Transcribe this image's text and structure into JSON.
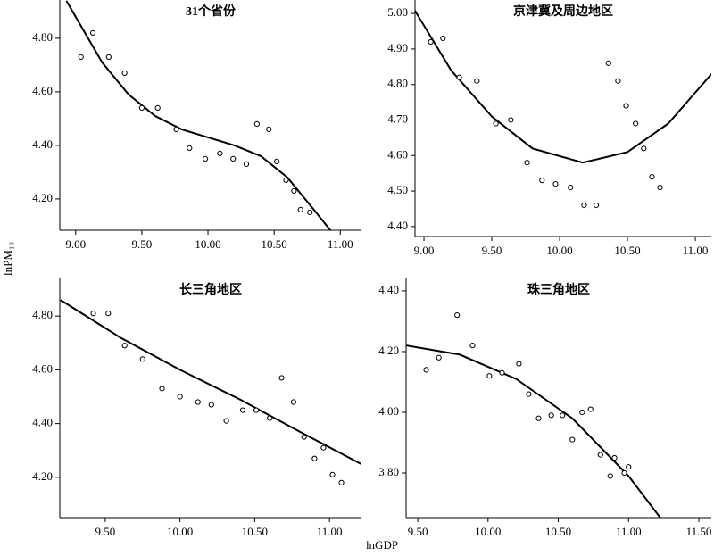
{
  "x_label": "lnGDP",
  "y_label": "lnPM₁₀",
  "chart_data": [
    {
      "type": "scatter",
      "title": "31个省份",
      "x": [
        9.04,
        9.13,
        9.25,
        9.37,
        9.5,
        9.62,
        9.76,
        9.86,
        9.98,
        10.09,
        10.19,
        10.29,
        10.37,
        10.46,
        10.52,
        10.59,
        10.65,
        10.7,
        10.77
      ],
      "values": [
        4.73,
        4.82,
        4.73,
        4.67,
        4.54,
        4.54,
        4.46,
        4.39,
        4.35,
        4.37,
        4.35,
        4.33,
        4.48,
        4.46,
        4.34,
        4.27,
        4.23,
        4.16,
        4.15
      ],
      "fit": {
        "x": [
          8.93,
          9.0,
          9.2,
          9.4,
          9.6,
          9.8,
          10.0,
          10.2,
          10.4,
          10.6,
          10.8,
          10.93
        ],
        "values": [
          4.94,
          4.88,
          4.71,
          4.59,
          4.51,
          4.46,
          4.43,
          4.4,
          4.36,
          4.28,
          4.16,
          4.08
        ]
      },
      "xlim": [
        8.88,
        11.16
      ],
      "ylim": [
        4.083,
        4.943
      ],
      "xticks": [
        {
          "value": 9,
          "label": "9.00"
        },
        {
          "value": 9.5,
          "label": "9.50"
        },
        {
          "value": 10,
          "label": "10.00"
        },
        {
          "value": 10.5,
          "label": "10.50"
        },
        {
          "value": 11,
          "label": "11.00"
        }
      ],
      "yticks": [
        {
          "value": 4.2,
          "label": "4.20"
        },
        {
          "value": 4.4,
          "label": "4.40"
        },
        {
          "value": 4.6,
          "label": "4.60"
        },
        {
          "value": 4.8,
          "label": "4.80"
        }
      ]
    },
    {
      "type": "scatter",
      "title": "京津冀及周边地区",
      "x": [
        9.05,
        9.14,
        9.26,
        9.39,
        9.53,
        9.64,
        9.76,
        9.87,
        9.97,
        10.08,
        10.18,
        10.27,
        10.36,
        10.43,
        10.49,
        10.56,
        10.62,
        10.68,
        10.74
      ],
      "values": [
        4.92,
        4.93,
        4.82,
        4.81,
        4.69,
        4.7,
        4.58,
        4.53,
        4.52,
        4.51,
        4.46,
        4.46,
        4.86,
        4.81,
        4.74,
        4.69,
        4.62,
        4.54,
        4.51
      ],
      "fit": {
        "x": [
          8.93,
          9.2,
          9.5,
          9.8,
          10.17,
          10.5,
          10.8,
          11.12
        ],
        "values": [
          5.01,
          4.84,
          4.71,
          4.62,
          4.58,
          4.61,
          4.69,
          4.83
        ]
      },
      "xlim": [
        8.934,
        11.118
      ],
      "ylim": [
        4.372,
        5.038
      ],
      "xticks": [
        {
          "value": 9,
          "label": "9.00"
        },
        {
          "value": 9.5,
          "label": "9.50"
        },
        {
          "value": 10,
          "label": "10.00"
        },
        {
          "value": 10.5,
          "label": "10.50"
        },
        {
          "value": 11,
          "label": "11.00"
        }
      ],
      "yticks": [
        {
          "value": 4.4,
          "label": "4.40"
        },
        {
          "value": 4.5,
          "label": "4.50"
        },
        {
          "value": 4.6,
          "label": "4.60"
        },
        {
          "value": 4.7,
          "label": "4.70"
        },
        {
          "value": 4.8,
          "label": "4.80"
        },
        {
          "value": 4.9,
          "label": "4.90"
        },
        {
          "value": 5,
          "label": "5.00"
        }
      ]
    },
    {
      "type": "scatter",
      "title": "长三角地区",
      "x": [
        9.42,
        9.52,
        9.63,
        9.75,
        9.88,
        10.0,
        10.12,
        10.21,
        10.31,
        10.42,
        10.51,
        10.6,
        10.68,
        10.76,
        10.83,
        10.9,
        10.96,
        11.02,
        11.08
      ],
      "values": [
        4.81,
        4.81,
        4.69,
        4.64,
        4.53,
        4.5,
        4.48,
        4.47,
        4.41,
        4.45,
        4.45,
        4.42,
        4.57,
        4.48,
        4.35,
        4.27,
        4.31,
        4.21,
        4.18
      ],
      "fit": {
        "x": [
          9.2,
          9.6,
          10.0,
          10.4,
          10.8,
          11.21
        ],
        "values": [
          4.86,
          4.72,
          4.6,
          4.49,
          4.37,
          4.25
        ]
      },
      "xlim": [
        9.196,
        11.214
      ],
      "ylim": [
        4.05,
        4.94
      ],
      "xticks": [
        {
          "value": 9.5,
          "label": "9.50"
        },
        {
          "value": 10,
          "label": "10.00"
        },
        {
          "value": 10.5,
          "label": "10.50"
        },
        {
          "value": 11,
          "label": "11.00"
        }
      ],
      "yticks": [
        {
          "value": 4.2,
          "label": "4.20"
        },
        {
          "value": 4.4,
          "label": "4.40"
        },
        {
          "value": 4.6,
          "label": "4.60"
        },
        {
          "value": 4.8,
          "label": "4.80"
        }
      ]
    },
    {
      "type": "scatter",
      "title": "珠三角地区",
      "x": [
        9.56,
        9.65,
        9.78,
        9.89,
        10.01,
        10.1,
        10.22,
        10.29,
        10.36,
        10.45,
        10.53,
        10.6,
        10.67,
        10.73,
        10.8,
        10.87,
        10.9,
        10.97,
        11.0
      ],
      "values": [
        4.14,
        4.18,
        4.32,
        4.22,
        4.12,
        4.13,
        4.16,
        4.06,
        3.98,
        3.99,
        3.99,
        3.91,
        4.0,
        4.01,
        3.86,
        3.79,
        3.85,
        3.8,
        3.82
      ],
      "fit": {
        "x": [
          9.42,
          9.8,
          10.2,
          10.6,
          11.0,
          11.23
        ],
        "values": [
          4.22,
          4.19,
          4.11,
          3.98,
          3.79,
          3.65
        ]
      },
      "xlim": [
        9.417,
        11.589
      ],
      "ylim": [
        3.653,
        4.441
      ],
      "xticks": [
        {
          "value": 9.5,
          "label": "9.50"
        },
        {
          "value": 10,
          "label": "10.00"
        },
        {
          "value": 10.5,
          "label": "10.50"
        },
        {
          "value": 11,
          "label": "11.00"
        },
        {
          "value": 11.5,
          "label": "11.50"
        }
      ],
      "yticks": [
        {
          "value": 3.8,
          "label": "3.80"
        },
        {
          "value": 4,
          "label": "4.00"
        },
        {
          "value": 4.2,
          "label": "4.20"
        },
        {
          "value": 4.4,
          "label": "4.40"
        }
      ]
    }
  ]
}
